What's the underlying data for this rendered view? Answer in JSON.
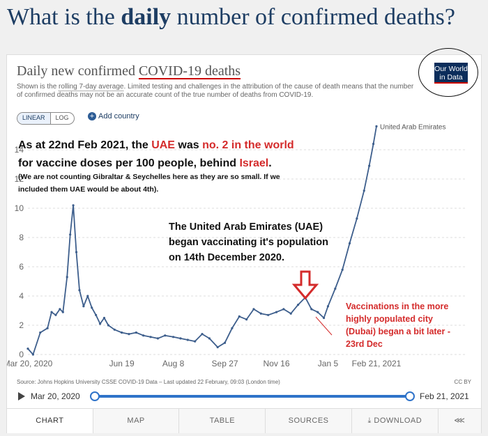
{
  "headline": {
    "pre": "What is the ",
    "bold": "daily",
    "post": " number of confirmed deaths?"
  },
  "card": {
    "title_pre": "Daily new confirmed ",
    "title_ul": "COVID-19 deaths",
    "subtitle_pre": "Shown is the ",
    "subtitle_link": "rolling 7-day average",
    "subtitle_post": ". Limited testing and challenges in the attribution of the cause of death means that the number of confirmed deaths may not be an accurate count of the true number of deaths from COVID-19.",
    "logo_line1": "Our World",
    "logo_line2": "in Data",
    "linear": "LINEAR",
    "log": "LOG",
    "add_country": "Add country"
  },
  "annotations": {
    "a1_l1_pre": "As at 22nd Feb 2021, the ",
    "a1_l1_uae": "UAE",
    "a1_l1_mid": " was ",
    "a1_l1_no2": "no. 2 in the world",
    "a1_l2_pre": "for vaccine doses per 100 people, behind ",
    "a1_l2_isr": "Israel",
    "a1_l2_end": ".",
    "a1_l3": "(We are not counting Gibraltar & Seychelles here as they are so small. If we",
    "a1_l4": "included them UAE would be about 4th).",
    "a2_l1": "The United Arab Emirates (UAE)",
    "a2_l2": "began vaccinating it's population",
    "a2_l3": "on 14th December 2020.",
    "a3_l1": "Vaccinations in the more",
    "a3_l2": "highly populated city",
    "a3_l3": "(Dubai) began a bit later -",
    "a3_l4": "23rd Dec"
  },
  "footer": {
    "source": "Source: Johns Hopkins University CSSE COVID-19 Data – Last updated 22 February, 09:03 (London time)",
    "license": "CC BY",
    "start": "Mar 20, 2020",
    "end": "Feb 21, 2021"
  },
  "tabs": [
    "CHART",
    "MAP",
    "TABLE",
    "SOURCES",
    "DOWNLOAD",
    ""
  ],
  "colors": {
    "line": "#3d5e8c",
    "accent": "#d42b2b",
    "navy": "#1d3d63",
    "slider": "#2f73c9"
  },
  "chart_data": {
    "type": "line",
    "title": "Daily new confirmed COVID-19 deaths",
    "x_tick_labels": [
      "Mar 20, 2020",
      "Jun 19",
      "Aug 8",
      "Sep 27",
      "Nov 16",
      "Jan 5",
      "Feb 21, 2021"
    ],
    "y_ticks": [
      0,
      2,
      4,
      6,
      8,
      10,
      12,
      14
    ],
    "y_tick_labels": [
      "0",
      "2",
      "4",
      "6",
      "8",
      "10",
      "12",
      "14"
    ],
    "ylim": [
      0,
      15
    ],
    "grid": "horizontal dashed",
    "series": [
      {
        "name": "United Arab Emirates",
        "x": [
          "2020-03-20",
          "2020-03-25",
          "2020-04-01",
          "2020-04-08",
          "2020-04-12",
          "2020-04-16",
          "2020-04-20",
          "2020-04-23",
          "2020-04-27",
          "2020-04-30",
          "2020-05-03",
          "2020-05-06",
          "2020-05-09",
          "2020-05-13",
          "2020-05-17",
          "2020-05-21",
          "2020-05-25",
          "2020-05-29",
          "2020-06-02",
          "2020-06-06",
          "2020-06-12",
          "2020-06-19",
          "2020-06-26",
          "2020-07-03",
          "2020-07-10",
          "2020-07-17",
          "2020-07-24",
          "2020-07-31",
          "2020-08-08",
          "2020-08-15",
          "2020-08-22",
          "2020-08-29",
          "2020-09-05",
          "2020-09-12",
          "2020-09-20",
          "2020-09-27",
          "2020-10-04",
          "2020-10-11",
          "2020-10-18",
          "2020-10-25",
          "2020-11-01",
          "2020-11-08",
          "2020-11-16",
          "2020-11-23",
          "2020-11-30",
          "2020-12-07",
          "2020-12-14",
          "2020-12-20",
          "2020-12-26",
          "2021-01-01",
          "2021-01-05",
          "2021-01-12",
          "2021-01-19",
          "2021-01-26",
          "2021-02-02",
          "2021-02-09",
          "2021-02-14",
          "2021-02-18",
          "2021-02-21"
        ],
        "y": [
          0.4,
          0.0,
          1.5,
          1.8,
          2.9,
          2.7,
          3.1,
          2.9,
          5.3,
          8.2,
          10.2,
          7.0,
          4.4,
          3.3,
          4.0,
          3.2,
          2.7,
          2.1,
          2.5,
          2.0,
          1.7,
          1.5,
          1.4,
          1.5,
          1.3,
          1.2,
          1.1,
          1.3,
          1.2,
          1.1,
          1.0,
          0.9,
          1.4,
          1.1,
          0.5,
          0.8,
          1.8,
          2.6,
          2.4,
          3.1,
          2.8,
          2.7,
          2.9,
          3.1,
          2.8,
          3.4,
          3.9,
          3.1,
          2.9,
          2.5,
          3.3,
          4.5,
          5.8,
          7.6,
          9.3,
          11.2,
          12.9,
          14.4,
          15.6
        ]
      }
    ]
  }
}
